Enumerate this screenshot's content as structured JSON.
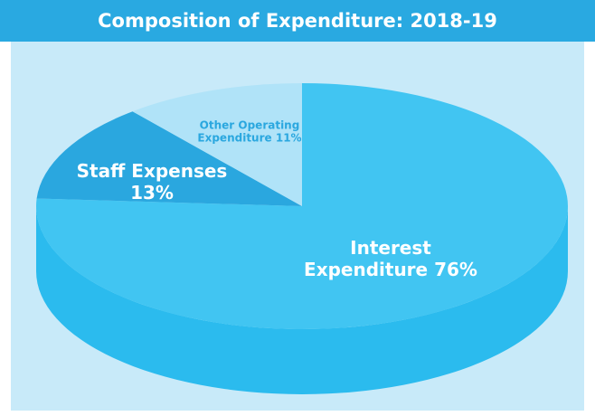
{
  "chart_data": {
    "type": "pie",
    "title": "Composition of Expenditure: 2018-19",
    "categories": [
      "Interest Expenditure",
      "Staff Expenses",
      "Other Operating Expenditure"
    ],
    "values": [
      76,
      13,
      11
    ],
    "value_labels": [
      "76%",
      "13%",
      "11%"
    ],
    "colors": [
      "#41c5f2",
      "#2aa7df",
      "#b0e3f8"
    ]
  }
}
